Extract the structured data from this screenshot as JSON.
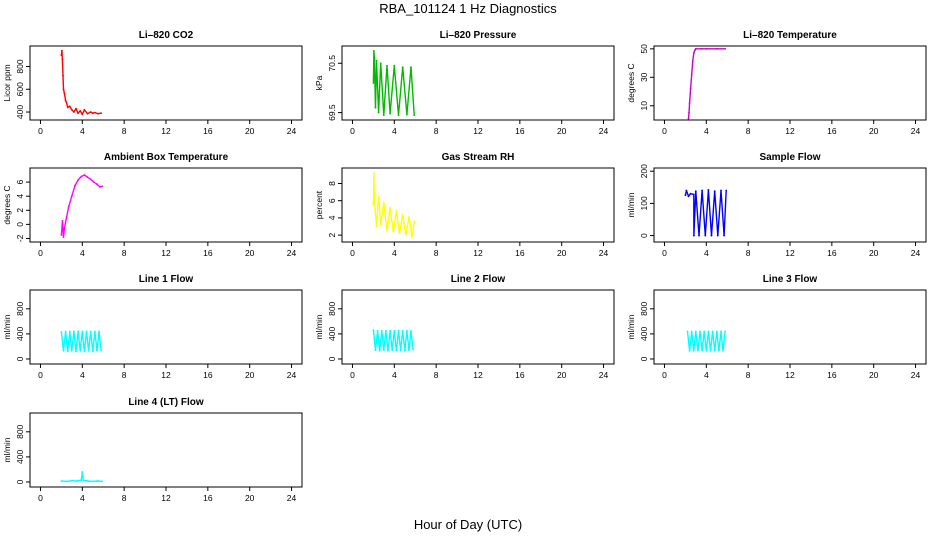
{
  "figure": {
    "title": "RBA_101124  1 Hz Diagnostics",
    "xlabel": "Hour of Day (UTC)"
  },
  "chart_data": [
    {
      "type": "line",
      "title": "Li–820 CO2",
      "ylabel": "Licor ppm",
      "xlim": [
        -1,
        25
      ],
      "ylim": [
        330,
        980
      ],
      "yticks": [
        400,
        600,
        800
      ],
      "xticks": [
        0,
        4,
        8,
        12,
        16,
        20,
        24
      ],
      "color": "#ff0000",
      "x": [
        2.0,
        2.05,
        2.1,
        2.15,
        2.2,
        2.3,
        2.4,
        2.5,
        2.6,
        2.8,
        3.0,
        3.2,
        3.4,
        3.6,
        3.8,
        4.0,
        4.2,
        4.5,
        4.8,
        5.0,
        5.2,
        5.5,
        5.8
      ],
      "y": [
        900,
        940,
        860,
        720,
        600,
        560,
        500,
        480,
        440,
        450,
        420,
        400,
        430,
        390,
        410,
        380,
        420,
        385,
        400,
        390,
        395,
        385,
        390
      ]
    },
    {
      "type": "line",
      "title": "Li–820 Pressure",
      "ylabel": "kPa",
      "xlim": [
        -1,
        25
      ],
      "ylim": [
        69.35,
        70.85
      ],
      "yticks": [
        69.5,
        70.5
      ],
      "xticks": [
        0,
        4,
        8,
        12,
        16,
        20,
        24
      ],
      "color": "#00bb00",
      "x": [
        2.0,
        2.05,
        2.1,
        2.2,
        2.3,
        2.5,
        2.7,
        3.0,
        3.3,
        3.6,
        4.0,
        4.4,
        4.8,
        5.2,
        5.6,
        5.9
      ],
      "y": [
        70.1,
        70.75,
        70.6,
        69.6,
        70.55,
        69.5,
        70.5,
        69.45,
        70.45,
        69.48,
        70.45,
        69.45,
        70.42,
        69.46,
        70.42,
        69.45
      ]
    },
    {
      "type": "line",
      "title": "Li–820 Temperature",
      "ylabel": "degrees C",
      "xlim": [
        -1,
        25
      ],
      "ylim": [
        0,
        52
      ],
      "yticks": [
        10,
        30,
        50
      ],
      "xticks": [
        0,
        4,
        8,
        12,
        16,
        20,
        24
      ],
      "color": "#cc00cc",
      "x": [
        2.3,
        2.35,
        2.4,
        2.5,
        2.6,
        2.7,
        2.8,
        2.9,
        3.0,
        3.5,
        4.0,
        5.0,
        5.8
      ],
      "y": [
        1,
        5,
        12,
        22,
        32,
        41,
        47,
        49,
        50,
        50,
        50,
        50,
        50
      ]
    },
    {
      "type": "line",
      "title": "Ambient Box Temperature",
      "ylabel": "degrees C",
      "xlim": [
        -1,
        25
      ],
      "ylim": [
        -2.5,
        8
      ],
      "yticks": [
        -2,
        0,
        2,
        4,
        6
      ],
      "xticks": [
        0,
        4,
        8,
        12,
        16,
        20,
        24
      ],
      "color": "#ff00ff",
      "x": [
        2.0,
        2.1,
        2.2,
        2.3,
        2.5,
        2.7,
        3.0,
        3.3,
        3.6,
        3.9,
        4.2,
        4.5,
        4.8,
        5.1,
        5.4,
        5.7,
        5.9
      ],
      "y": [
        -1.5,
        0.5,
        -1.8,
        -0.5,
        1.0,
        2.5,
        4.0,
        5.5,
        6.3,
        6.8,
        7.0,
        6.7,
        6.4,
        6.0,
        5.7,
        5.3,
        5.4
      ]
    },
    {
      "type": "line",
      "title": "Gas Stream RH",
      "ylabel": "percent",
      "xlim": [
        -1,
        25
      ],
      "ylim": [
        1.2,
        9.8
      ],
      "yticks": [
        2,
        4,
        6,
        8
      ],
      "xticks": [
        0,
        4,
        8,
        12,
        16,
        20,
        24
      ],
      "color": "#ffff00",
      "x": [
        2.0,
        2.05,
        2.1,
        2.3,
        2.5,
        2.7,
        3.0,
        3.3,
        3.6,
        3.9,
        4.2,
        4.5,
        4.8,
        5.1,
        5.4,
        5.7,
        5.9
      ],
      "y": [
        5.5,
        9.2,
        6.0,
        3.0,
        6.5,
        3.2,
        5.8,
        2.5,
        5.2,
        2.4,
        4.8,
        2.2,
        4.4,
        2.0,
        4.1,
        1.8,
        3.6
      ]
    },
    {
      "type": "line",
      "title": "Sample Flow",
      "ylabel": "ml/min",
      "xlim": [
        -1,
        25
      ],
      "ylim": [
        -20,
        210
      ],
      "yticks": [
        0,
        100,
        200
      ],
      "xticks": [
        0,
        4,
        8,
        12,
        16,
        20,
        24
      ],
      "color": "#0000ff",
      "x": [
        2.0,
        2.1,
        2.3,
        2.5,
        2.8,
        2.81,
        3.0,
        3.3,
        3.6,
        3.9,
        4.2,
        4.5,
        4.8,
        5.1,
        5.4,
        5.7,
        5.9
      ],
      "y": [
        125,
        140,
        122,
        130,
        128,
        0,
        138,
        0,
        140,
        0,
        142,
        0,
        138,
        0,
        140,
        0,
        140
      ]
    },
    {
      "type": "line",
      "title": "Line 1 Flow",
      "ylabel": "ml/min",
      "xlim": [
        -1,
        25
      ],
      "ylim": [
        -80,
        1100
      ],
      "yticks": [
        0,
        400,
        800
      ],
      "xticks": [
        0,
        4,
        8,
        12,
        16,
        20,
        24
      ],
      "color": "#00ffff",
      "x": [
        2.0,
        2.2,
        2.4,
        2.6,
        2.8,
        3.0,
        3.2,
        3.4,
        3.6,
        3.8,
        4.0,
        4.2,
        4.4,
        4.6,
        4.8,
        5.0,
        5.2,
        5.4,
        5.6,
        5.8
      ],
      "y": [
        430,
        130,
        440,
        120,
        440,
        130,
        440,
        120,
        440,
        130,
        440,
        120,
        440,
        130,
        440,
        120,
        440,
        130,
        440,
        140
      ]
    },
    {
      "type": "line",
      "title": "Line 2 Flow",
      "ylabel": "ml/min",
      "xlim": [
        -1,
        25
      ],
      "ylim": [
        -80,
        1100
      ],
      "yticks": [
        0,
        400,
        800
      ],
      "xticks": [
        0,
        4,
        8,
        12,
        16,
        20,
        24
      ],
      "color": "#00ffff",
      "x": [
        2.0,
        2.2,
        2.4,
        2.6,
        2.8,
        3.0,
        3.2,
        3.4,
        3.6,
        3.8,
        4.0,
        4.2,
        4.4,
        4.6,
        4.8,
        5.0,
        5.2,
        5.4,
        5.6,
        5.8
      ],
      "y": [
        460,
        140,
        450,
        130,
        450,
        140,
        450,
        130,
        450,
        140,
        450,
        130,
        450,
        140,
        450,
        130,
        450,
        140,
        450,
        150
      ]
    },
    {
      "type": "line",
      "title": "Line 3 Flow",
      "ylabel": "ml/min",
      "xlim": [
        -1,
        25
      ],
      "ylim": [
        -80,
        1100
      ],
      "yticks": [
        0,
        400,
        800
      ],
      "xticks": [
        0,
        4,
        8,
        12,
        16,
        20,
        24
      ],
      "color": "#00ffff",
      "x": [
        2.2,
        2.4,
        2.6,
        2.8,
        3.0,
        3.2,
        3.4,
        3.6,
        3.8,
        4.0,
        4.2,
        4.4,
        4.6,
        4.8,
        5.0,
        5.2,
        5.4,
        5.6,
        5.8
      ],
      "y": [
        440,
        130,
        440,
        130,
        440,
        130,
        440,
        130,
        440,
        130,
        440,
        130,
        440,
        130,
        440,
        130,
        440,
        130,
        440
      ]
    },
    {
      "type": "line",
      "title": "Line 4 (LT) Flow",
      "ylabel": "ml/min",
      "xlim": [
        -1,
        25
      ],
      "ylim": [
        -80,
        1100
      ],
      "yticks": [
        0,
        400,
        800
      ],
      "xticks": [
        0,
        4,
        8,
        12,
        16,
        20,
        24
      ],
      "color": "#00ffff",
      "x": [
        2.0,
        2.5,
        3.0,
        3.5,
        3.9,
        4.0,
        4.1,
        4.5,
        5.0,
        5.5,
        5.9
      ],
      "y": [
        15,
        10,
        20,
        15,
        30,
        160,
        25,
        15,
        10,
        15,
        10
      ]
    }
  ]
}
